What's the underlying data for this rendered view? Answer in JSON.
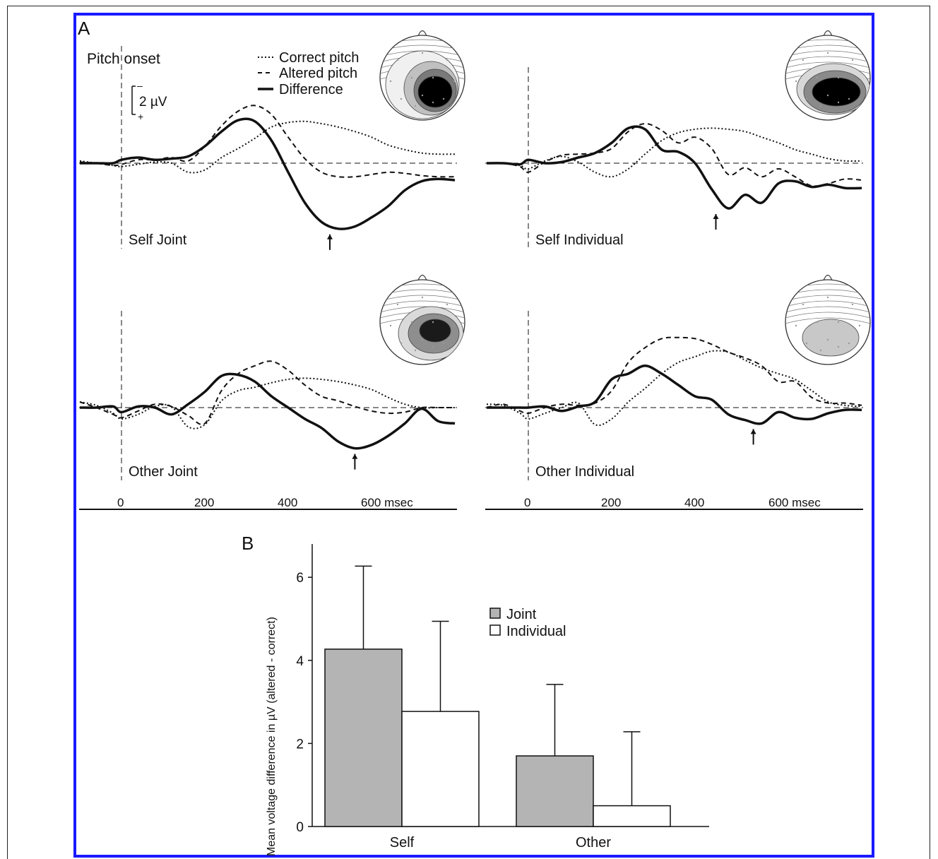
{
  "figure": {
    "panel_a_label": "A",
    "panel_b_label": "B",
    "pitch_onset_label": "Pitch onset",
    "scale_label": "2 µV",
    "scale_minus": "–",
    "scale_plus": "+"
  },
  "legend_a": {
    "correct": "Correct pitch",
    "altered": "Altered pitch",
    "difference": "Difference"
  },
  "panels": [
    {
      "label": "Self Joint"
    },
    {
      "label": "Self Individual"
    },
    {
      "label": "Other Joint"
    },
    {
      "label": "Other Individual"
    }
  ],
  "time_axis": {
    "ticks": [
      "0",
      "200",
      "400",
      "600 msec"
    ]
  },
  "chart_data": [
    {
      "type": "line",
      "title": "",
      "panel": "Self Joint",
      "x_unit": "msec",
      "xlim": [
        -100,
        800
      ],
      "series": [
        {
          "name": "Correct pitch",
          "style": "dotted",
          "x": [
            -100,
            -60,
            -20,
            0,
            40,
            80,
            120,
            160,
            200,
            240,
            280,
            320,
            360,
            400,
            440,
            480,
            520,
            560,
            600,
            640,
            680,
            720,
            760,
            800
          ],
          "y": [
            0.2,
            0,
            -0.2,
            -0.3,
            -0.1,
            0.1,
            0,
            -0.8,
            -0.6,
            0.5,
            1.3,
            2.2,
            3.2,
            3.6,
            3.7,
            3.5,
            3.2,
            2.8,
            2.3,
            1.6,
            1.2,
            0.9,
            0.8,
            0.8
          ]
        },
        {
          "name": "Altered pitch",
          "style": "dashed",
          "x": [
            -100,
            -60,
            -20,
            0,
            40,
            80,
            120,
            160,
            200,
            240,
            280,
            320,
            360,
            400,
            440,
            480,
            520,
            560,
            600,
            640,
            680,
            720,
            760,
            800
          ],
          "y": [
            0.1,
            0,
            -0.2,
            -0.1,
            0.3,
            0.3,
            0.5,
            0.2,
            1.5,
            3.3,
            4.6,
            5.1,
            4.3,
            2.3,
            0.4,
            -0.8,
            -1.2,
            -1.2,
            -1.0,
            -0.8,
            -0.9,
            -1.1,
            -1.2,
            -1.2
          ]
        },
        {
          "name": "Difference",
          "style": "solid",
          "x": [
            -100,
            -60,
            -20,
            0,
            40,
            80,
            120,
            160,
            200,
            240,
            280,
            320,
            360,
            400,
            440,
            480,
            520,
            560,
            600,
            640,
            680,
            720,
            760,
            800
          ],
          "y": [
            0,
            0,
            0,
            0.3,
            0.5,
            0.3,
            0.4,
            0.6,
            1.5,
            2.8,
            3.8,
            3.7,
            2,
            -0.8,
            -3.5,
            -5.2,
            -5.8,
            -5.6,
            -4.8,
            -3.8,
            -2.4,
            -1.6,
            -1.4,
            -1.5
          ]
        }
      ],
      "peak_marker_x": 500,
      "ylim": [
        -7,
        6
      ]
    },
    {
      "type": "line",
      "title": "",
      "panel": "Self Individual",
      "x_unit": "msec",
      "xlim": [
        -100,
        800
      ],
      "series": [
        {
          "name": "Correct pitch",
          "style": "dotted",
          "x": [
            -100,
            -60,
            -20,
            0,
            40,
            80,
            120,
            160,
            200,
            240,
            280,
            320,
            360,
            400,
            440,
            480,
            520,
            560,
            600,
            640,
            680,
            720,
            760,
            800
          ],
          "y": [
            0,
            0,
            -0.2,
            -0.5,
            0.2,
            0.6,
            0.1,
            -0.8,
            -1.2,
            -0.5,
            0.8,
            2,
            2.7,
            3,
            3.1,
            3,
            2.8,
            2.3,
            1.8,
            1.2,
            0.8,
            0.4,
            0.2,
            0.2
          ]
        },
        {
          "name": "Altered pitch",
          "style": "dashed",
          "x": [
            -100,
            -60,
            -20,
            0,
            40,
            80,
            120,
            160,
            200,
            240,
            280,
            320,
            360,
            400,
            440,
            480,
            520,
            560,
            600,
            640,
            680,
            720,
            760,
            800
          ],
          "y": [
            0,
            0,
            -0.3,
            -0.8,
            0.1,
            0.7,
            0.8,
            0.9,
            1.3,
            2.8,
            3.5,
            2.9,
            1.8,
            2.3,
            1.3,
            -1,
            -0.4,
            -1.2,
            -0.5,
            -1.2,
            -2,
            -1.8,
            -1.4,
            -1.5
          ]
        },
        {
          "name": "Difference",
          "style": "solid",
          "x": [
            -100,
            -60,
            -20,
            0,
            40,
            80,
            120,
            160,
            200,
            240,
            280,
            320,
            360,
            400,
            440,
            480,
            520,
            560,
            600,
            640,
            680,
            720,
            760,
            800
          ],
          "y": [
            0,
            0,
            -0.1,
            0.3,
            0,
            0.1,
            0.5,
            0.9,
            1.8,
            3.1,
            3,
            1.2,
            1,
            0,
            -2.3,
            -4,
            -2.8,
            -3.5,
            -1.8,
            -1.6,
            -2.1,
            -1.9,
            -2.2,
            -2.2
          ]
        }
      ],
      "peak_marker_x": 450,
      "ylim": [
        -7,
        6
      ]
    },
    {
      "type": "line",
      "title": "",
      "panel": "Other Joint",
      "x_unit": "msec",
      "xlim": [
        -100,
        800
      ],
      "series": [
        {
          "name": "Correct pitch",
          "style": "dotted",
          "x": [
            -100,
            -60,
            -20,
            0,
            40,
            80,
            120,
            160,
            200,
            240,
            280,
            320,
            360,
            400,
            440,
            480,
            520,
            560,
            600,
            640,
            680,
            720,
            760,
            800
          ],
          "y": [
            0.5,
            0.2,
            -0.5,
            -1,
            -0.6,
            0.1,
            0.1,
            -1.7,
            -1.5,
            0.6,
            1.5,
            1.8,
            2.2,
            2.5,
            2.6,
            2.5,
            2.3,
            2,
            1.6,
            0.9,
            0.3,
            0,
            0,
            0
          ]
        },
        {
          "name": "Altered pitch",
          "style": "dashed",
          "x": [
            -100,
            -60,
            -20,
            0,
            40,
            80,
            120,
            160,
            200,
            240,
            280,
            320,
            360,
            400,
            440,
            480,
            520,
            560,
            600,
            640,
            680,
            720,
            760,
            800
          ],
          "y": [
            0.5,
            0,
            -0.6,
            -0.9,
            -0.3,
            0.3,
            0.1,
            -0.7,
            -1.4,
            1.5,
            3,
            3.7,
            4.1,
            3.3,
            2,
            1,
            0.6,
            0.1,
            -0.3,
            -0.5,
            -0.4,
            0,
            0,
            0
          ]
        },
        {
          "name": "Difference",
          "style": "solid",
          "x": [
            -100,
            -60,
            -20,
            0,
            40,
            80,
            120,
            160,
            200,
            240,
            280,
            320,
            360,
            400,
            440,
            480,
            520,
            560,
            600,
            640,
            680,
            720,
            760,
            800
          ],
          "y": [
            0,
            0,
            0.1,
            -0.4,
            0.1,
            0,
            -0.6,
            0.3,
            1.4,
            2.8,
            2.9,
            2.3,
            1,
            0,
            -1,
            -1.8,
            -3,
            -3.6,
            -3.3,
            -2.5,
            -1.4,
            -0.1,
            -1.2,
            -1.4
          ]
        }
      ],
      "peak_marker_x": 560,
      "ylim": [
        -7,
        6
      ]
    },
    {
      "type": "line",
      "title": "",
      "panel": "Other Individual",
      "x_unit": "msec",
      "xlim": [
        -100,
        800
      ],
      "series": [
        {
          "name": "Correct pitch",
          "style": "dotted",
          "x": [
            -100,
            -60,
            -20,
            0,
            40,
            80,
            120,
            160,
            200,
            240,
            280,
            320,
            360,
            400,
            440,
            480,
            520,
            560,
            600,
            640,
            680,
            720,
            760,
            800
          ],
          "y": [
            0.3,
            0.2,
            -0.5,
            -1,
            -0.5,
            0,
            0.4,
            -1.5,
            -1,
            0.5,
            1.7,
            3,
            4,
            4.5,
            5,
            4.9,
            4.2,
            3.5,
            3,
            2.5,
            1.5,
            0.5,
            0.2,
            0.1
          ]
        },
        {
          "name": "Altered pitch",
          "style": "dashed",
          "x": [
            -100,
            -60,
            -20,
            0,
            40,
            80,
            120,
            160,
            200,
            240,
            280,
            320,
            360,
            400,
            440,
            480,
            520,
            560,
            600,
            640,
            680,
            720,
            760,
            800
          ],
          "y": [
            0,
            0.3,
            -0.3,
            -0.5,
            0,
            0.3,
            0.2,
            0.4,
            1.5,
            4,
            5.3,
            6.1,
            6.2,
            6.1,
            5.6,
            4.9,
            4.4,
            3.7,
            2.3,
            2.3,
            0.9,
            0.4,
            0.4,
            0.2
          ]
        },
        {
          "name": "Difference",
          "style": "solid",
          "x": [
            -100,
            -60,
            -20,
            0,
            40,
            80,
            120,
            160,
            200,
            240,
            280,
            320,
            360,
            400,
            440,
            480,
            520,
            560,
            600,
            640,
            680,
            720,
            760,
            800
          ],
          "y": [
            0,
            0,
            0,
            0,
            0.1,
            -0.3,
            0.1,
            0.5,
            2.5,
            3,
            3.7,
            3,
            2,
            1,
            0.7,
            -0.6,
            -1.1,
            -1.4,
            -0.4,
            -0.9,
            -1,
            -0.5,
            -0.2,
            -0.2
          ]
        }
      ],
      "peak_marker_x": 540,
      "ylim": [
        -7,
        6
      ]
    },
    {
      "type": "bar",
      "title": "",
      "ylabel": "Mean voltage difference in µV (altered - correct)",
      "categories": [
        "Self",
        "Other"
      ],
      "series": [
        {
          "name": "Joint",
          "values": [
            4.27,
            1.7
          ],
          "error": [
            2.0,
            1.72
          ],
          "color": "#b4b4b4"
        },
        {
          "name": "Individual",
          "values": [
            2.77,
            0.5
          ],
          "error": [
            2.17,
            1.78
          ],
          "color": "#ffffff"
        }
      ],
      "yticks": [
        "0",
        "2",
        "4",
        "6"
      ],
      "ylim": [
        0,
        6.8
      ],
      "legend": "inside-top-right"
    }
  ]
}
